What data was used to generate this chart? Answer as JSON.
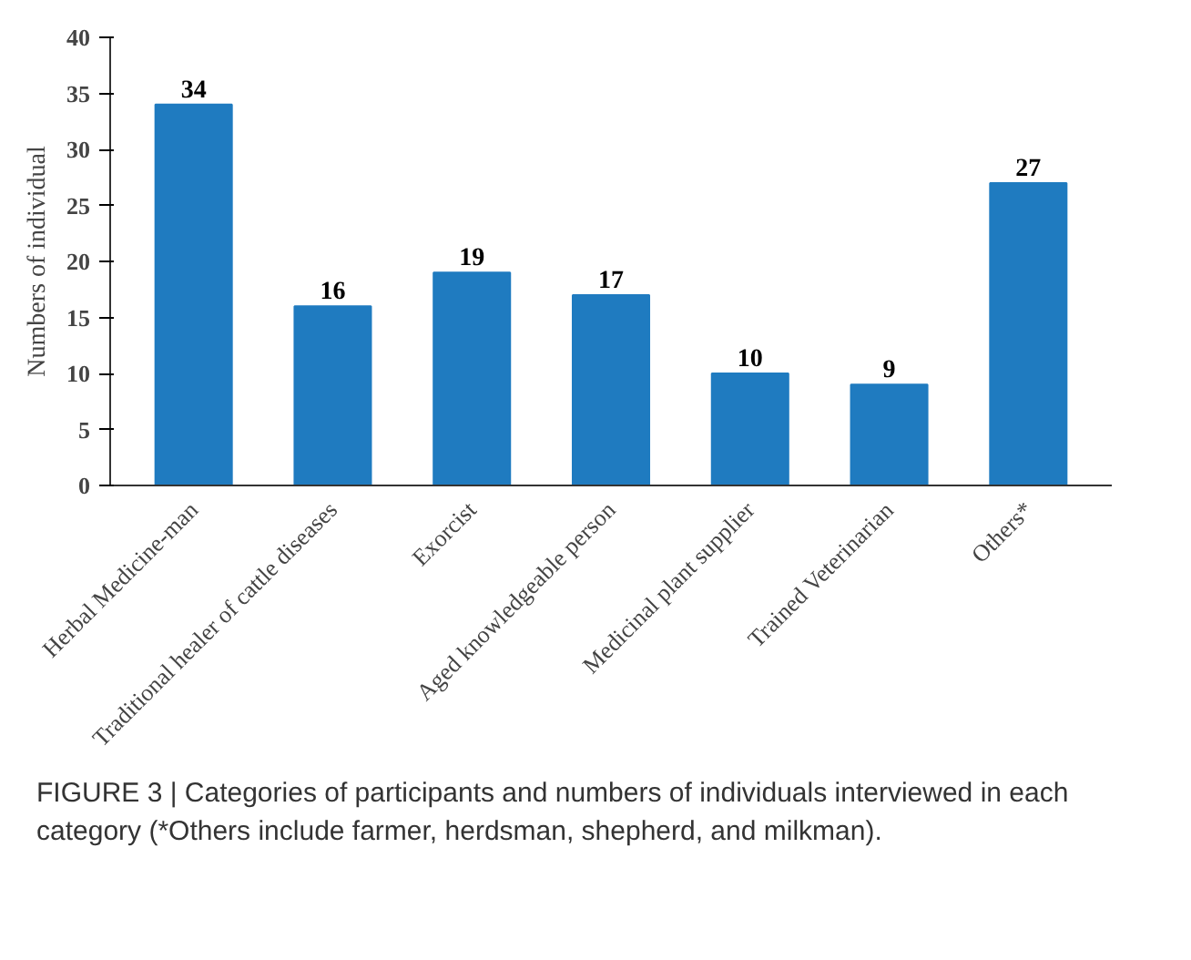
{
  "chart_data": {
    "type": "bar",
    "ylabel": "Numbers of individual",
    "categories": [
      "Herbal Medicine-man",
      "Traditional healer of cattle diseases",
      "Exorcist",
      "Aged knowledgeable person",
      "Medicinal plant supplier",
      "Trained Veterinarian",
      "Others*"
    ],
    "values": [
      34,
      16,
      19,
      17,
      10,
      9,
      27
    ],
    "color": "#1f7bc0",
    "ylim": [
      0,
      40
    ],
    "yticks": [
      0,
      5,
      10,
      15,
      20,
      25,
      30,
      35,
      40
    ],
    "grid": false,
    "data_labels": true,
    "annotations": [
      "FIGURE 3 | Categories of participants and numbers of individuals interviewed in each category (*Others include farmer, herdsman, shepherd, and milkman)."
    ]
  }
}
